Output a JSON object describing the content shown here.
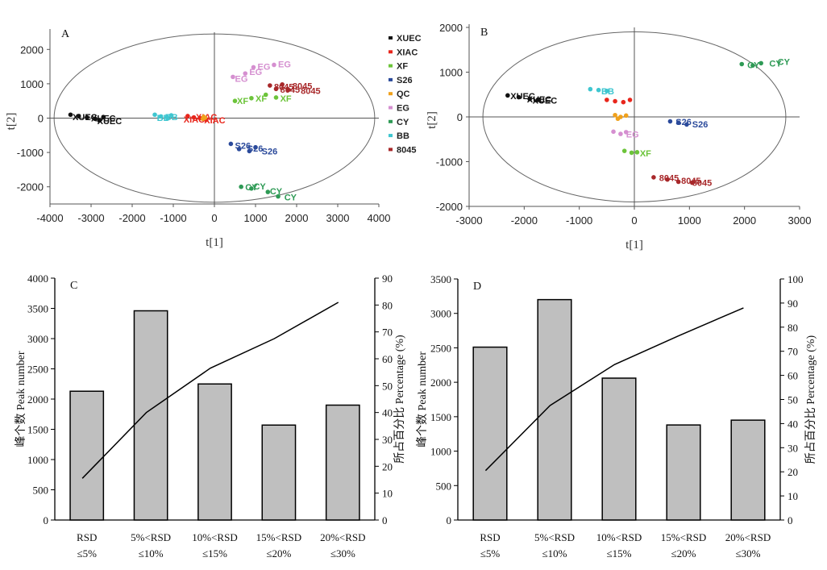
{
  "chart_data": [
    {
      "type": "scatter",
      "panel": "A",
      "xlabel": "t[1]",
      "ylabel": "t[2]",
      "xlim": [
        -4000,
        4000
      ],
      "ylim": [
        -2500,
        2500
      ],
      "xticks": [
        "-4000",
        "-3000",
        "-2000",
        "-1000",
        "0",
        "1000",
        "2000",
        "3000",
        "4000"
      ],
      "yticks": [
        "2000",
        "1000",
        "0",
        "-1000",
        "-2000"
      ],
      "ellipse": {
        "rx": 3900,
        "ry": 2450
      },
      "legend": [
        {
          "name": "XUEC",
          "color": "#111111"
        },
        {
          "name": "XIAC",
          "color": "#e8261c"
        },
        {
          "name": "XF",
          "color": "#6cc43a"
        },
        {
          "name": "S26",
          "color": "#2b4a9b"
        },
        {
          "name": "QC",
          "color": "#f0a11c"
        },
        {
          "name": "EG",
          "color": "#d58fd0"
        },
        {
          "name": "CY",
          "color": "#2e9a55"
        },
        {
          "name": "BB",
          "color": "#3fc6d0"
        },
        {
          "name": "8045",
          "color": "#a8282a"
        }
      ],
      "series": [
        {
          "name": "XUEC",
          "color": "#111111",
          "points": [
            [
              -3500,
              100
            ],
            [
              -3300,
              60
            ],
            [
              -3100,
              20
            ],
            [
              -2900,
              -20
            ],
            [
              -2700,
              30
            ],
            [
              -2800,
              -70
            ]
          ],
          "labels": [
            [
              -3450,
              30,
              "XUEC"
            ],
            [
              -3000,
              0,
              "XUEC"
            ],
            [
              -2850,
              -80,
              "XUEC"
            ]
          ]
        },
        {
          "name": "BB",
          "color": "#3fc6d0",
          "points": [
            [
              -1450,
              100
            ],
            [
              -1300,
              50
            ],
            [
              -1150,
              20
            ],
            [
              -1050,
              80
            ]
          ],
          "labels": [
            [
              -1400,
              10,
              "BB"
            ],
            [
              -1200,
              30,
              "BB"
            ]
          ]
        },
        {
          "name": "XIAC",
          "color": "#e8261c",
          "points": [
            [
              -650,
              60
            ],
            [
              -500,
              20
            ],
            [
              -350,
              0
            ],
            [
              -200,
              -50
            ]
          ],
          "labels": [
            [
              -750,
              -40,
              "XIAC"
            ],
            [
              -450,
              40,
              "XIAC"
            ],
            [
              -250,
              -60,
              "XIAC"
            ]
          ]
        },
        {
          "name": "QC",
          "color": "#f0a11c",
          "points": [
            [
              -280,
              -20
            ],
            [
              -230,
              10
            ],
            [
              -260,
              40
            ]
          ],
          "labels": []
        },
        {
          "name": "EG",
          "color": "#d58fd0",
          "points": [
            [
              450,
              1200
            ],
            [
              950,
              1480
            ],
            [
              1450,
              1550
            ],
            [
              750,
              1300
            ]
          ],
          "labels": [
            [
              500,
              1150,
              "EG"
            ],
            [
              850,
              1350,
              "EG"
            ],
            [
              1050,
              1500,
              "EG"
            ],
            [
              1550,
              1570,
              "EG"
            ]
          ]
        },
        {
          "name": "8045",
          "color": "#a8282a",
          "points": [
            [
              1350,
              950
            ],
            [
              1500,
              850
            ],
            [
              1650,
              980
            ],
            [
              1800,
              820
            ]
          ],
          "labels": [
            [
              1450,
              920,
              "8045"
            ],
            [
              1600,
              830,
              "8045"
            ],
            [
              1900,
              940,
              "8045"
            ],
            [
              2100,
              800,
              "8045"
            ]
          ]
        },
        {
          "name": "XF",
          "color": "#6cc43a",
          "points": [
            [
              500,
              500
            ],
            [
              900,
              580
            ],
            [
              1250,
              680
            ],
            [
              1500,
              600
            ]
          ],
          "labels": [
            [
              550,
              500,
              "XF"
            ],
            [
              1000,
              580,
              "XF"
            ],
            [
              1600,
              580,
              "XF"
            ]
          ]
        },
        {
          "name": "S26",
          "color": "#2b4a9b",
          "points": [
            [
              400,
              -750
            ],
            [
              600,
              -900
            ],
            [
              850,
              -960
            ],
            [
              1000,
              -850
            ]
          ],
          "labels": [
            [
              500,
              -800,
              "S26"
            ],
            [
              800,
              -880,
              "S26"
            ],
            [
              1150,
              -960,
              "S26"
            ]
          ]
        },
        {
          "name": "CY",
          "color": "#2e9a55",
          "points": [
            [
              650,
              -2000
            ],
            [
              900,
              -2050
            ],
            [
              1300,
              -2150
            ],
            [
              1550,
              -2280
            ]
          ],
          "labels": [
            [
              750,
              -2010,
              "CY"
            ],
            [
              950,
              -1980,
              "CY"
            ],
            [
              1350,
              -2130,
              "CY"
            ],
            [
              1700,
              -2300,
              "CY"
            ]
          ]
        }
      ]
    },
    {
      "type": "scatter",
      "panel": "B",
      "xlabel": "t[1]",
      "ylabel": "t[2]",
      "xlim": [
        -3000,
        3000
      ],
      "ylim": [
        -2000,
        2000
      ],
      "xticks": [
        "-3000",
        "-2000",
        "-1000",
        "0",
        "1000",
        "2000",
        "3000"
      ],
      "yticks": [
        "2000",
        "1000",
        "0",
        "-1000",
        "-2000"
      ],
      "ellipse": {
        "rx": 2750,
        "ry": 1900
      },
      "series": [
        {
          "name": "XUEC",
          "color": "#111111",
          "points": [
            [
              -2300,
              480
            ],
            [
              -2100,
              440
            ],
            [
              -1900,
              400
            ],
            [
              -1750,
              380
            ]
          ],
          "labels": [
            [
              -2250,
              470,
              "XUEC"
            ],
            [
              -1950,
              400,
              "XUEC"
            ],
            [
              -1850,
              370,
              "XUEC"
            ]
          ]
        },
        {
          "name": "BB",
          "color": "#3fc6d0",
          "points": [
            [
              -800,
              620
            ],
            [
              -650,
              600
            ],
            [
              -500,
              580
            ]
          ],
          "labels": [
            [
              -600,
              580,
              "BB"
            ]
          ]
        },
        {
          "name": "XIAC",
          "color": "#e8261c",
          "points": [
            [
              -500,
              380
            ],
            [
              -350,
              350
            ],
            [
              -200,
              330
            ],
            [
              -80,
              380
            ]
          ],
          "labels": []
        },
        {
          "name": "QC",
          "color": "#f0a11c",
          "points": [
            [
              -350,
              40
            ],
            [
              -250,
              0
            ],
            [
              -150,
              30
            ],
            [
              -300,
              -40
            ]
          ],
          "labels": []
        },
        {
          "name": "EG",
          "color": "#d58fd0",
          "points": [
            [
              -380,
              -330
            ],
            [
              -250,
              -380
            ],
            [
              -150,
              -340
            ]
          ],
          "labels": [
            [
              -150,
              -390,
              "EG"
            ]
          ]
        },
        {
          "name": "XF",
          "color": "#6cc43a",
          "points": [
            [
              -180,
              -760
            ],
            [
              -50,
              -800
            ],
            [
              50,
              -790
            ]
          ],
          "labels": [
            [
              100,
              -810,
              "XF"
            ]
          ]
        },
        {
          "name": "S26",
          "color": "#2b4a9b",
          "points": [
            [
              650,
              -100
            ],
            [
              800,
              -130
            ],
            [
              950,
              -170
            ]
          ],
          "labels": [
            [
              750,
              -110,
              "S26"
            ],
            [
              1050,
              -160,
              "S26"
            ]
          ]
        },
        {
          "name": "CY",
          "color": "#2e9a55",
          "points": [
            [
              1950,
              1180
            ],
            [
              2150,
              1150
            ],
            [
              2300,
              1200
            ]
          ],
          "labels": [
            [
              2050,
              1160,
              "CY"
            ],
            [
              2450,
              1200,
              "CY"
            ],
            [
              2600,
              1230,
              "CY"
            ]
          ]
        },
        {
          "name": "8045",
          "color": "#a8282a",
          "points": [
            [
              350,
              -1350
            ],
            [
              600,
              -1400
            ],
            [
              800,
              -1450
            ],
            [
              1050,
              -1470
            ]
          ],
          "labels": [
            [
              450,
              -1360,
              "8045"
            ],
            [
              850,
              -1420,
              "8045"
            ],
            [
              1050,
              -1470,
              "8045"
            ]
          ]
        }
      ]
    },
    {
      "type": "bar",
      "panel": "C",
      "categories": [
        [
          "RSD",
          "≤5%"
        ],
        [
          "5%<RSD",
          "≤10%"
        ],
        [
          "10%<RSD",
          "≤15%"
        ],
        [
          "15%<RSD",
          "≤20%"
        ],
        [
          "20%<RSD",
          "≤30%"
        ]
      ],
      "values": [
        2130,
        3460,
        2250,
        1570,
        1900
      ],
      "line": [
        15.5,
        40,
        56.5,
        67.5,
        81
      ],
      "ylim": [
        0,
        4000
      ],
      "y2lim": [
        0,
        90
      ],
      "yticks": [
        "0",
        "500",
        "1000",
        "1500",
        "2000",
        "2500",
        "3000",
        "3500",
        "4000"
      ],
      "y2ticks": [
        "0",
        "10",
        "20",
        "30",
        "40",
        "50",
        "60",
        "70",
        "80",
        "90"
      ],
      "ylabel": "峰个数 Peak number",
      "y2label": "所占百分比 Percentage (%)"
    },
    {
      "type": "bar",
      "panel": "D",
      "categories": [
        [
          "RSD",
          "≤5%"
        ],
        [
          "5%<RSD",
          "≤10%"
        ],
        [
          "10%<RSD",
          "≤15%"
        ],
        [
          "15%<RSD",
          "≤20%"
        ],
        [
          "20%<RSD",
          "≤30%"
        ]
      ],
      "values": [
        2510,
        3200,
        2060,
        1380,
        1450
      ],
      "line": [
        20.5,
        47.5,
        64.5,
        76.5,
        88
      ],
      "ylim": [
        0,
        3500
      ],
      "y2lim": [
        0,
        100
      ],
      "yticks": [
        "0",
        "500",
        "1000",
        "1500",
        "2000",
        "2500",
        "3000",
        "3500"
      ],
      "y2ticks": [
        "0",
        "10",
        "20",
        "30",
        "40",
        "50",
        "60",
        "70",
        "80",
        "90",
        "100"
      ],
      "ylabel": "峰个数 Peak number",
      "y2label": "所占百分比 Percentage (%)"
    }
  ]
}
